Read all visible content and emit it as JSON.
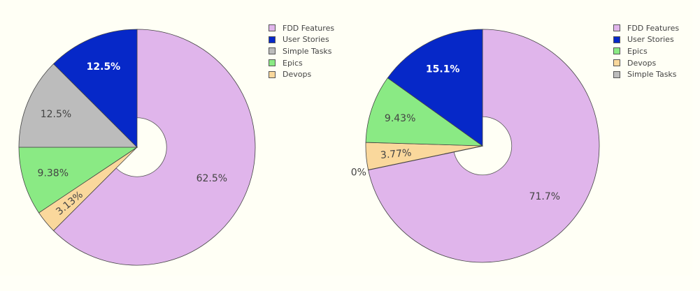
{
  "chart_data": [
    {
      "type": "pie",
      "hole": 0.25,
      "title": "",
      "slices": [
        {
          "label": "FDD Features",
          "value": 62.5,
          "text": "62.5%",
          "color": "#e0b5eb"
        },
        {
          "label": "Devops",
          "value": 3.13,
          "text": "3.13%",
          "color": "#fad89c"
        },
        {
          "label": "Epics",
          "value": 9.38,
          "text": "9.38%",
          "color": "#8aea84"
        },
        {
          "label": "Simple Tasks",
          "value": 12.5,
          "text": "12.5%",
          "color": "#bcbcbc"
        },
        {
          "label": "User Stories",
          "value": 12.5,
          "text": "12.5%",
          "color": "#0628c8"
        }
      ],
      "legend": [
        "FDD Features",
        "User Stories",
        "Simple Tasks",
        "Epics",
        "Devops"
      ],
      "legend_position": "top-right"
    },
    {
      "type": "pie",
      "hole": 0.25,
      "title": "",
      "slices": [
        {
          "label": "FDD Features",
          "value": 71.7,
          "text": "71.7%",
          "color": "#e0b5eb"
        },
        {
          "label": "Simple Tasks",
          "value": 0,
          "text": "0%",
          "color": "#bcbcbc"
        },
        {
          "label": "Devops",
          "value": 3.77,
          "text": "3.77%",
          "color": "#fad89c"
        },
        {
          "label": "Epics",
          "value": 9.43,
          "text": "9.43%",
          "color": "#8aea84"
        },
        {
          "label": "User Stories",
          "value": 15.1,
          "text": "15.1%",
          "color": "#0628c8"
        }
      ],
      "legend": [
        "FDD Features",
        "User Stories",
        "Epics",
        "Devops",
        "Simple Tasks"
      ],
      "legend_position": "top-right"
    }
  ],
  "colors": {
    "FDD Features": "#e0b5eb",
    "User Stories": "#0628c8",
    "Simple Tasks": "#bcbcbc",
    "Epics": "#8aea84",
    "Devops": "#fad89c"
  }
}
